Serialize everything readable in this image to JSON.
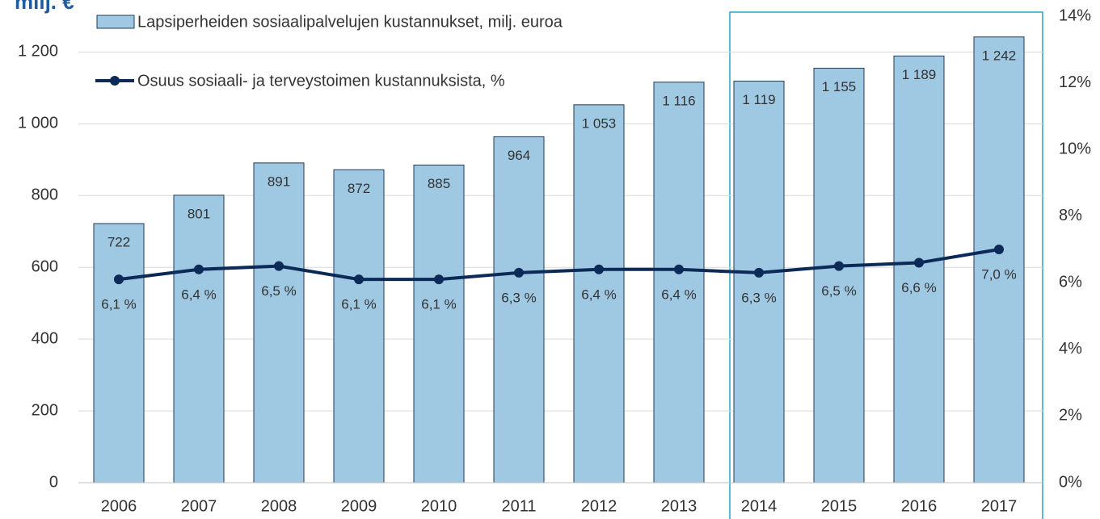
{
  "chart_data": {
    "type": "bar_line",
    "title": "milj. €",
    "categories": [
      "2006",
      "2007",
      "2008",
      "2009",
      "2010",
      "2011",
      "2012",
      "2013",
      "2014",
      "2015",
      "2016",
      "2017"
    ],
    "series": [
      {
        "name": "Lapsiperheiden sosiaalipalvelujen kustannukset, milj. euroa",
        "type": "bar",
        "color": "#9fc8e2",
        "values": [
          722,
          801,
          891,
          872,
          885,
          964,
          1053,
          1116,
          1119,
          1155,
          1189,
          1242
        ],
        "value_labels": [
          "722",
          "801",
          "891",
          "872",
          "885",
          "964",
          "1 053",
          "1 116",
          "1 119",
          "1 155",
          "1 189",
          "1 242"
        ]
      },
      {
        "name": "Osuus sosiaali- ja terveystoimen kustannuksista, %",
        "type": "line",
        "axis": "y2",
        "color": "#0b2a57",
        "values": [
          6.1,
          6.4,
          6.5,
          6.1,
          6.1,
          6.3,
          6.4,
          6.4,
          6.3,
          6.5,
          6.6,
          7.0
        ],
        "value_labels": [
          "6,1 %",
          "6,4 %",
          "6,5 %",
          "6,1 %",
          "6,1 %",
          "6,3 %",
          "6,4 %",
          "6,4 %",
          "6,3 %",
          "6,5 %",
          "6,6 %",
          "7,0 %"
        ]
      }
    ],
    "ylim": [
      0,
      1300
    ],
    "yticks": [
      0,
      200,
      400,
      600,
      800,
      {
        "value": 1000,
        "label": "1 000"
      },
      {
        "value": 1200,
        "label": "1 200"
      }
    ],
    "y2lim": [
      0,
      14
    ],
    "y2ticks": [
      {
        "value": 0,
        "label": "0%"
      },
      {
        "value": 2,
        "label": "2%"
      },
      {
        "value": 4,
        "label": "4%"
      },
      {
        "value": 6,
        "label": "6%"
      },
      {
        "value": 8,
        "label": "8%"
      },
      {
        "value": 10,
        "label": "10%"
      },
      {
        "value": 12,
        "label": "12%"
      },
      {
        "value": 14,
        "label": "14%"
      }
    ],
    "grid": true
  }
}
